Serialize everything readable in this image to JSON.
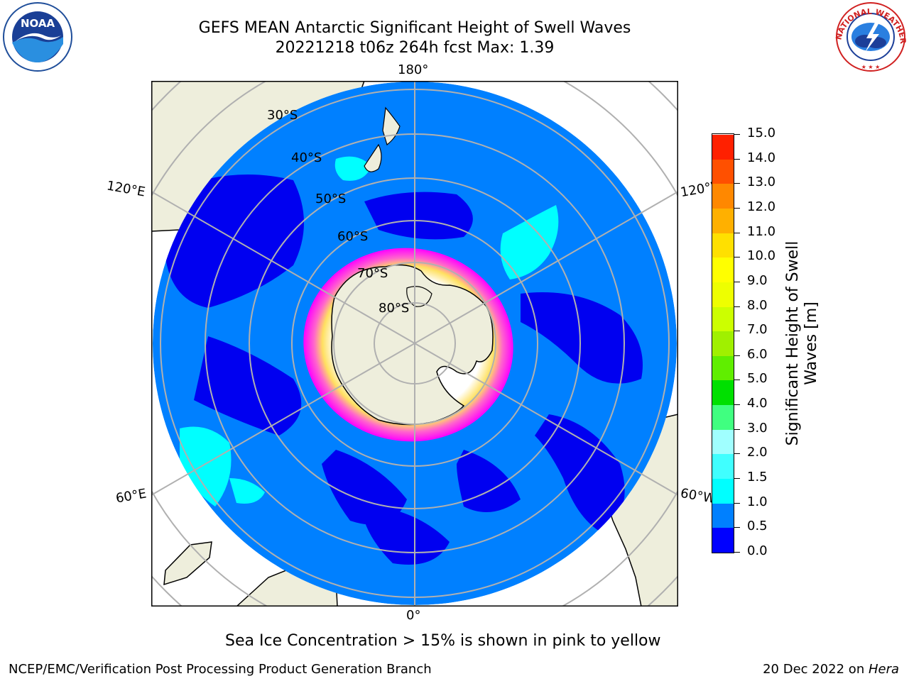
{
  "header": {
    "title_line1": "GEFS MEAN Antarctic Significant Height of Swell Waves",
    "title_line2": "20221218 t06z 264h fcst   Max: 1.39"
  },
  "logos": {
    "left": {
      "icon": "noaa-logo",
      "text": "NOAA"
    },
    "right": {
      "icon": "nws-logo",
      "text": "NATIONAL WEATHER SERVICE"
    }
  },
  "map": {
    "longitude_labels": {
      "top": "180°",
      "bottom": "0°",
      "upper_left": "120°E",
      "upper_right": "120°W",
      "lower_left": "60°E",
      "lower_right": "60°W"
    },
    "latitude_labels": [
      "30°S",
      "40°S",
      "50°S",
      "60°S",
      "70°S",
      "80°S"
    ],
    "colors": {
      "land": "#eeeedc",
      "ocean_light": "#0080ff",
      "ocean_dark": "#0000f0",
      "cyan_swell": "#00ffff",
      "sea_ice": [
        "#ff00ff",
        "#ff66cc",
        "#ffcc66",
        "#ffff00",
        "#ffffff"
      ],
      "graticule": "#b0b0b0"
    }
  },
  "colorbar": {
    "label": "Significant Height of Swell Waves [m]",
    "ticks": [
      "0.0",
      "0.5",
      "1.0",
      "1.5",
      "2.0",
      "3.0",
      "4.0",
      "5.0",
      "6.0",
      "7.0",
      "8.0",
      "9.0",
      "10.0",
      "11.0",
      "12.0",
      "13.0",
      "14.0",
      "15.0"
    ],
    "colors": [
      "#0000ff",
      "#0080ff",
      "#00ffff",
      "#40ffff",
      "#a0ffff",
      "#40ff80",
      "#00e000",
      "#60ee00",
      "#a0f000",
      "#ccff00",
      "#eeff00",
      "#ffff00",
      "#ffe000",
      "#ffb000",
      "#ff8800",
      "#ff5000",
      "#ff2000"
    ]
  },
  "footer": {
    "note": "Sea Ice Concentration > 15% is shown in pink to yellow",
    "left": "NCEP/EMC/Verification Post Processing Product Generation Branch",
    "right_prefix": "20 Dec 2022 on ",
    "right_italic": "Hera"
  }
}
